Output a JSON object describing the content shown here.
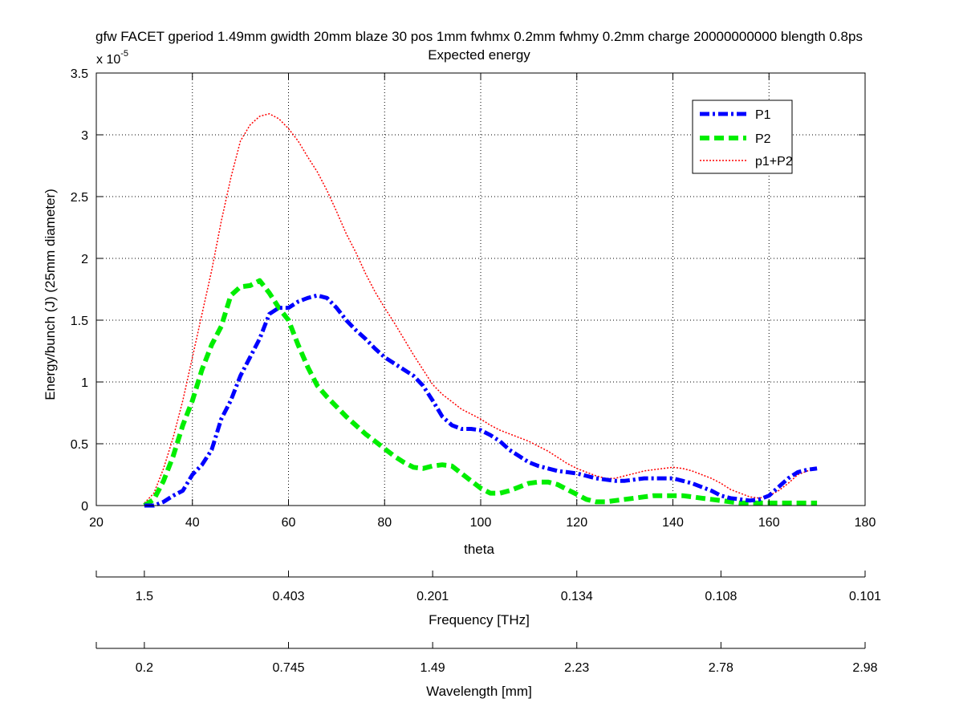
{
  "chart_data": {
    "type": "line",
    "title_line1": "gfw FACET gperiod 1.49mm gwidth 20mm blaze 30 pos 1mm fwhmx 0.2mm fwhmy 0.2mm charge 20000000000 blength 0.8ps",
    "title_line2": "Expected energy",
    "xlabel": "theta",
    "ylabel": "Energy/bunch (J) (25mm diameter)",
    "y_multiplier_base": "x 10",
    "y_multiplier_exp": "-5",
    "xlim": [
      20,
      180
    ],
    "ylim": [
      0,
      3.5
    ],
    "x_ticks": [
      20,
      40,
      60,
      80,
      100,
      120,
      140,
      160,
      180
    ],
    "y_ticks": [
      0,
      0.5,
      1,
      1.5,
      2,
      2.5,
      3,
      3.5
    ],
    "x_tick_labels": [
      "20",
      "40",
      "60",
      "80",
      "100",
      "120",
      "140",
      "160",
      "180"
    ],
    "y_tick_labels": [
      "0",
      "0.5",
      "1",
      "1.5",
      "2",
      "2.5",
      "3",
      "3.5"
    ],
    "grid": true,
    "legend_position": "top-right",
    "series": [
      {
        "name": "P1",
        "color": "#0000ff",
        "style": "dashdot",
        "x": [
          30,
          32,
          34,
          36,
          38,
          40,
          42,
          44,
          46,
          48,
          50,
          52,
          54,
          56,
          58,
          60,
          62,
          64,
          66,
          68,
          70,
          72,
          74,
          76,
          78,
          80,
          82,
          84,
          86,
          88,
          90,
          92,
          94,
          96,
          98,
          100,
          102,
          104,
          106,
          108,
          110,
          112,
          114,
          116,
          118,
          120,
          122,
          124,
          126,
          128,
          130,
          132,
          134,
          136,
          138,
          140,
          142,
          144,
          146,
          148,
          150,
          152,
          154,
          156,
          158,
          160,
          162,
          164,
          166,
          168,
          170
        ],
        "y": [
          0.0,
          0.0,
          0.03,
          0.08,
          0.12,
          0.25,
          0.33,
          0.45,
          0.7,
          0.85,
          1.05,
          1.2,
          1.35,
          1.55,
          1.6,
          1.6,
          1.65,
          1.68,
          1.7,
          1.68,
          1.6,
          1.5,
          1.42,
          1.35,
          1.27,
          1.2,
          1.15,
          1.1,
          1.05,
          0.97,
          0.85,
          0.72,
          0.65,
          0.62,
          0.62,
          0.61,
          0.57,
          0.52,
          0.45,
          0.4,
          0.35,
          0.32,
          0.3,
          0.28,
          0.27,
          0.26,
          0.24,
          0.22,
          0.21,
          0.2,
          0.2,
          0.21,
          0.22,
          0.22,
          0.22,
          0.22,
          0.2,
          0.18,
          0.15,
          0.12,
          0.08,
          0.06,
          0.05,
          0.04,
          0.05,
          0.08,
          0.15,
          0.22,
          0.27,
          0.29,
          0.3
        ]
      },
      {
        "name": "P2",
        "color": "#00ee00",
        "style": "dashed",
        "x": [
          30,
          32,
          34,
          36,
          38,
          40,
          42,
          44,
          46,
          48,
          50,
          52,
          54,
          56,
          58,
          60,
          62,
          64,
          66,
          68,
          70,
          72,
          74,
          76,
          78,
          80,
          82,
          84,
          86,
          88,
          90,
          92,
          94,
          96,
          98,
          100,
          102,
          104,
          106,
          108,
          110,
          112,
          114,
          116,
          118,
          120,
          122,
          124,
          126,
          128,
          130,
          132,
          134,
          136,
          138,
          140,
          142,
          144,
          146,
          148,
          150,
          152,
          154,
          156,
          158,
          160,
          162,
          164,
          166,
          168,
          170
        ],
        "y": [
          0.0,
          0.05,
          0.2,
          0.4,
          0.65,
          0.85,
          1.1,
          1.3,
          1.45,
          1.7,
          1.77,
          1.78,
          1.82,
          1.72,
          1.6,
          1.5,
          1.3,
          1.12,
          0.97,
          0.88,
          0.8,
          0.72,
          0.65,
          0.58,
          0.52,
          0.46,
          0.4,
          0.35,
          0.31,
          0.3,
          0.32,
          0.33,
          0.32,
          0.26,
          0.2,
          0.14,
          0.1,
          0.1,
          0.12,
          0.15,
          0.18,
          0.19,
          0.19,
          0.17,
          0.13,
          0.09,
          0.05,
          0.03,
          0.03,
          0.04,
          0.05,
          0.06,
          0.07,
          0.08,
          0.08,
          0.08,
          0.08,
          0.07,
          0.06,
          0.05,
          0.04,
          0.03,
          0.02,
          0.02,
          0.02,
          0.02,
          0.02,
          0.02,
          0.02,
          0.02,
          0.02
        ]
      },
      {
        "name": "p1+P2",
        "color": "#ff0000",
        "style": "dotted",
        "x": [
          30,
          32,
          34,
          36,
          38,
          40,
          42,
          44,
          46,
          48,
          50,
          52,
          54,
          56,
          58,
          60,
          62,
          64,
          66,
          68,
          70,
          72,
          74,
          76,
          78,
          80,
          82,
          84,
          86,
          88,
          90,
          92,
          94,
          96,
          98,
          100,
          102,
          104,
          106,
          108,
          110,
          112,
          114,
          116,
          118,
          120,
          122,
          124,
          126,
          128,
          130,
          132,
          134,
          136,
          138,
          140,
          142,
          144,
          146,
          148,
          150,
          152,
          154,
          156,
          158,
          160,
          162,
          164,
          166,
          168,
          170
        ],
        "y": [
          0.02,
          0.1,
          0.3,
          0.55,
          0.85,
          1.2,
          1.55,
          1.9,
          2.3,
          2.65,
          2.95,
          3.08,
          3.15,
          3.17,
          3.13,
          3.05,
          2.95,
          2.82,
          2.7,
          2.55,
          2.38,
          2.2,
          2.05,
          1.88,
          1.73,
          1.6,
          1.48,
          1.35,
          1.22,
          1.1,
          0.98,
          0.9,
          0.84,
          0.78,
          0.74,
          0.7,
          0.65,
          0.61,
          0.58,
          0.55,
          0.52,
          0.48,
          0.44,
          0.39,
          0.34,
          0.3,
          0.27,
          0.24,
          0.22,
          0.22,
          0.24,
          0.26,
          0.28,
          0.29,
          0.3,
          0.31,
          0.3,
          0.28,
          0.25,
          0.22,
          0.18,
          0.13,
          0.1,
          0.07,
          0.06,
          0.08,
          0.12,
          0.18,
          0.25,
          0.28,
          0.3
        ]
      }
    ],
    "secondary_axes": [
      {
        "label": "Frequency [THz]",
        "tick_theta": [
          20,
          30,
          60,
          90,
          120,
          150,
          180
        ],
        "tick_labels": [
          "",
          "1.5",
          "0.403",
          "0.201",
          "0.134",
          "0.108",
          "0.101"
        ]
      },
      {
        "label": "Wavelength [mm]",
        "tick_theta": [
          20,
          30,
          60,
          90,
          120,
          150,
          180
        ],
        "tick_labels": [
          "",
          "0.2",
          "0.745",
          "1.49",
          "2.23",
          "2.78",
          "2.98"
        ]
      }
    ]
  }
}
